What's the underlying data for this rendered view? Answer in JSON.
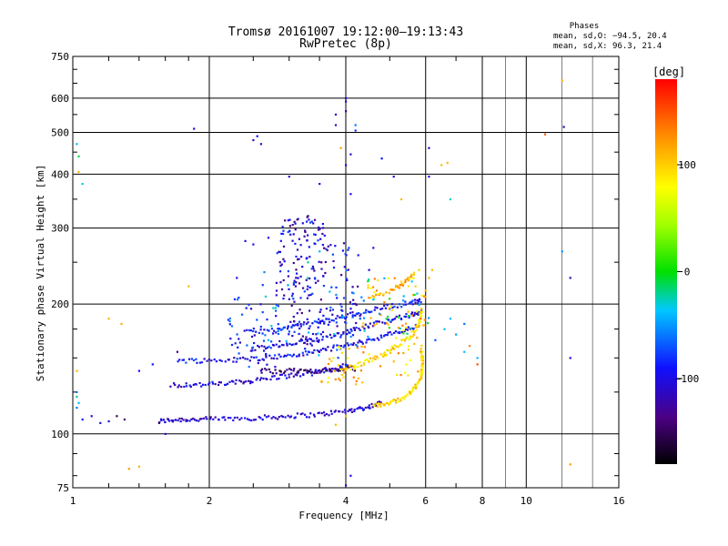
{
  "chart_data": {
    "type": "scatter",
    "title": "Tromsø 20161007 19:12:00–19:13:43",
    "subtitle": "RwPretec (8p)",
    "xlabel": "Frequency [MHz]",
    "ylabel": "Stationary phase Virtual Height [km]",
    "x_scale": "log",
    "y_scale": "log",
    "xlim": [
      1,
      16
    ],
    "ylim": [
      75,
      750
    ],
    "x_ticks": [
      "1",
      "2",
      "4",
      "6",
      "8",
      "10",
      "16"
    ],
    "y_ticks": [
      "75",
      "100",
      "200",
      "300",
      "400",
      "500",
      "600",
      "750"
    ],
    "grid": true,
    "phase_box": {
      "title": "Phases",
      "line_o": "mean, sd,O: −94.5, 20.4",
      "line_x": "mean, sd,X:  96.3, 21.4"
    },
    "colorbar": {
      "label": "[deg]",
      "range": [
        -180,
        180
      ],
      "ticks": [
        "100",
        "0",
        "−100"
      ],
      "tick_values": [
        100,
        0,
        -100
      ]
    },
    "traces": [
      {
        "points": [
          [
            1.55,
            107
          ],
          [
            1.7,
            108
          ],
          [
            1.9,
            108
          ],
          [
            2.2,
            108.5
          ],
          [
            2.6,
            109
          ],
          [
            3.0,
            110
          ],
          [
            3.5,
            111
          ],
          [
            4.0,
            113
          ],
          [
            4.4,
            115
          ],
          [
            4.8,
            118
          ]
        ],
        "phase": -110
      },
      {
        "points": [
          [
            1.65,
            130
          ],
          [
            1.9,
            130
          ],
          [
            2.2,
            131
          ],
          [
            2.5,
            133
          ],
          [
            2.9,
            136
          ],
          [
            3.3,
            138
          ],
          [
            3.7,
            141
          ],
          [
            4.1,
            145
          ]
        ],
        "phase": -105
      },
      {
        "points": [
          [
            1.7,
            148
          ],
          [
            2.0,
            148
          ],
          [
            2.4,
            149
          ],
          [
            2.8,
            151
          ],
          [
            3.2,
            153
          ],
          [
            3.6,
            157
          ],
          [
            4.1,
            161
          ],
          [
            4.6,
            166
          ],
          [
            5.2,
            172
          ],
          [
            5.8,
            178
          ]
        ],
        "phase": -95
      },
      {
        "points": [
          [
            2.5,
            158
          ],
          [
            2.9,
            160
          ],
          [
            3.3,
            164
          ],
          [
            3.8,
            170
          ],
          [
            4.3,
            176
          ],
          [
            4.9,
            183
          ],
          [
            5.5,
            188
          ],
          [
            5.9,
            192
          ]
        ],
        "phase": -100
      },
      {
        "points": [
          [
            2.4,
            172
          ],
          [
            2.8,
            174
          ],
          [
            3.2,
            178
          ],
          [
            3.7,
            184
          ],
          [
            4.2,
            190
          ],
          [
            4.8,
            196
          ],
          [
            5.5,
            201
          ],
          [
            5.9,
            204
          ]
        ],
        "phase": -90
      },
      {
        "points": [
          [
            2.6,
            140
          ],
          [
            3.0,
            140
          ],
          [
            3.4,
            140
          ],
          [
            3.8,
            141
          ],
          [
            4.2,
            142
          ]
        ],
        "phase": -140
      },
      {
        "points": [
          [
            4.6,
            116
          ],
          [
            5.0,
            118
          ],
          [
            5.4,
            122
          ],
          [
            5.7,
            128
          ],
          [
            5.85,
            135
          ],
          [
            5.9,
            142
          ],
          [
            5.9,
            150
          ],
          [
            5.85,
            160
          ]
        ],
        "phase": 95
      },
      {
        "points": [
          [
            3.9,
            140
          ],
          [
            4.3,
            145
          ],
          [
            4.8,
            152
          ],
          [
            5.2,
            160
          ],
          [
            5.6,
            170
          ],
          [
            5.8,
            180
          ],
          [
            5.9,
            195
          ]
        ],
        "phase": 90
      },
      {
        "points": [
          [
            4.5,
            205
          ],
          [
            5.0,
            215
          ],
          [
            5.4,
            225
          ],
          [
            5.7,
            235
          ]
        ],
        "phase": 110
      }
    ],
    "clusters": [
      {
        "x_range": [
          2.8,
          3.6
        ],
        "y_range": [
          160,
          320
        ],
        "count": 170,
        "phase": -105
      },
      {
        "x_range": [
          3.6,
          4.3
        ],
        "y_range": [
          170,
          280
        ],
        "count": 60,
        "phase": -100
      },
      {
        "x_range": [
          2.2,
          2.9
        ],
        "y_range": [
          140,
          210
        ],
        "count": 50,
        "phase": -90
      },
      {
        "x_range": [
          2.5,
          4.5
        ],
        "y_range": [
          150,
          240
        ],
        "count": 40,
        "phase": -60
      },
      {
        "x_range": [
          4.3,
          6.0
        ],
        "y_range": [
          135,
          230
        ],
        "count": 70,
        "phase": 105
      },
      {
        "x_range": [
          3.5,
          4.4
        ],
        "y_range": [
          130,
          160
        ],
        "count": 30,
        "phase": 100
      },
      {
        "x_range": [
          4.4,
          6.2
        ],
        "y_range": [
          160,
          240
        ],
        "count": 25,
        "phase": -20
      }
    ],
    "points": [
      [
        1.02,
        115,
        -60
      ],
      [
        1.02,
        125,
        -60
      ],
      [
        1.03,
        118,
        -40
      ],
      [
        1.05,
        108,
        -90
      ],
      [
        1.1,
        110,
        -100
      ],
      [
        1.15,
        106,
        -100
      ],
      [
        1.2,
        107,
        -100
      ],
      [
        1.02,
        122,
        -20
      ],
      [
        1.02,
        470,
        -40
      ],
      [
        1.03,
        440,
        -10
      ],
      [
        1.05,
        380,
        -30
      ],
      [
        1.03,
        405,
        110
      ],
      [
        1.25,
        110,
        -150
      ],
      [
        1.3,
        108,
        -140
      ],
      [
        1.4,
        140,
        -95
      ],
      [
        1.5,
        145,
        -90
      ],
      [
        1.55,
        106,
        -150
      ],
      [
        1.6,
        100,
        -100
      ],
      [
        1.33,
        83,
        120
      ],
      [
        1.4,
        84,
        110
      ],
      [
        1.28,
        180,
        110
      ],
      [
        1.2,
        185,
        110
      ],
      [
        1.02,
        140,
        110
      ],
      [
        1.8,
        220,
        110
      ],
      [
        1.85,
        510,
        -100
      ],
      [
        1.7,
        155,
        -140
      ],
      [
        2.5,
        480,
        -100
      ],
      [
        2.6,
        470,
        -100
      ],
      [
        2.55,
        490,
        -90
      ],
      [
        2.4,
        280,
        -100
      ],
      [
        2.5,
        275,
        -100
      ],
      [
        2.7,
        285,
        -100
      ],
      [
        3.0,
        395,
        -100
      ],
      [
        3.1,
        220,
        -120
      ],
      [
        3.3,
        320,
        -150
      ],
      [
        3.5,
        380,
        -90
      ],
      [
        3.8,
        520,
        -100
      ],
      [
        3.8,
        550,
        -100
      ],
      [
        3.9,
        460,
        120
      ],
      [
        4.0,
        600,
        -100
      ],
      [
        4.0,
        590,
        -110
      ],
      [
        4.0,
        560,
        -130
      ],
      [
        4.1,
        445,
        -110
      ],
      [
        4.1,
        360,
        -100
      ],
      [
        4.2,
        520,
        -60
      ],
      [
        4.2,
        505,
        -80
      ],
      [
        4.0,
        420,
        -100
      ],
      [
        4.5,
        240,
        -100
      ],
      [
        4.6,
        270,
        -100
      ],
      [
        4.8,
        435,
        -90
      ],
      [
        5.1,
        395,
        -100
      ],
      [
        5.3,
        350,
        110
      ],
      [
        5.5,
        220,
        90
      ],
      [
        5.7,
        220,
        100
      ],
      [
        6.1,
        460,
        -110
      ],
      [
        6.1,
        395,
        -100
      ],
      [
        6.2,
        240,
        110
      ],
      [
        6.3,
        165,
        -70
      ],
      [
        6.5,
        420,
        110
      ],
      [
        6.7,
        425,
        110
      ],
      [
        6.8,
        350,
        -30
      ],
      [
        7.3,
        180,
        -60
      ],
      [
        7.3,
        155,
        -40
      ],
      [
        7.5,
        160,
        130
      ],
      [
        7.8,
        150,
        -40
      ],
      [
        7.8,
        145,
        150
      ],
      [
        6.1,
        230,
        110
      ],
      [
        6.0,
        215,
        110
      ],
      [
        5.8,
        240,
        100
      ],
      [
        4.3,
        185,
        -70
      ],
      [
        4.6,
        205,
        -30
      ],
      [
        3.3,
        250,
        -20
      ],
      [
        3.5,
        265,
        -40
      ],
      [
        2.7,
        165,
        -40
      ],
      [
        4.1,
        80,
        -100
      ],
      [
        4.0,
        76,
        -100
      ],
      [
        3.8,
        105,
        110
      ],
      [
        4.0,
        110,
        110
      ],
      [
        11.0,
        495,
        150
      ],
      [
        12.0,
        660,
        110
      ],
      [
        12.1,
        515,
        -120
      ],
      [
        12.5,
        230,
        -120
      ],
      [
        12.5,
        85,
        120
      ],
      [
        12.5,
        150,
        -100
      ],
      [
        12.0,
        265,
        -50
      ],
      [
        6.8,
        185,
        -40
      ],
      [
        6.6,
        175,
        -40
      ],
      [
        7.0,
        170,
        -50
      ],
      [
        2.3,
        230,
        -100
      ],
      [
        2.9,
        175,
        -60
      ]
    ]
  }
}
